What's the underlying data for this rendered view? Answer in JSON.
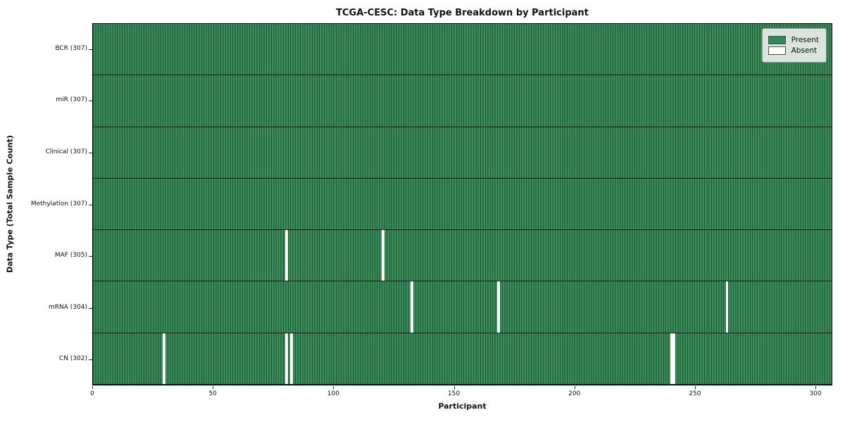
{
  "chart_data": {
    "type": "heatmap",
    "title": "TCGA-CESC: Data Type Breakdown by Participant",
    "xlabel": "Participant",
    "ylabel": "Data Type (Total Sample Count)",
    "x_ticks": [
      0,
      50,
      100,
      150,
      200,
      250,
      300
    ],
    "x_range": [
      0,
      307
    ],
    "n_participants": 307,
    "grid": false,
    "legend_position": "upper right",
    "legend": [
      {
        "label": "Present",
        "color": "#2e8b57"
      },
      {
        "label": "Absent",
        "color": "#ffffff"
      }
    ],
    "rows": [
      {
        "label": "BCR (307)",
        "data_type": "BCR",
        "present_count": 307,
        "absent_participants": []
      },
      {
        "label": "miR (307)",
        "data_type": "miR",
        "present_count": 307,
        "absent_participants": []
      },
      {
        "label": "Clinical (307)",
        "data_type": "Clinical",
        "present_count": 307,
        "absent_participants": []
      },
      {
        "label": "Methylation (307)",
        "data_type": "Methylation",
        "present_count": 307,
        "absent_participants": []
      },
      {
        "label": "MAF (305)",
        "data_type": "MAF",
        "present_count": 305,
        "absent_participants": [
          80,
          120
        ]
      },
      {
        "label": "mRNA (304)",
        "data_type": "mRNA",
        "present_count": 304,
        "absent_participants": [
          132,
          168,
          263
        ]
      },
      {
        "label": "CN (302)",
        "data_type": "CN",
        "present_count": 302,
        "absent_participants": [
          29,
          80,
          82,
          240,
          241
        ]
      }
    ],
    "colors": {
      "present_fill": "#3a8e5c",
      "cell_edge": "#20532f",
      "row_separator": "#1a1a1a",
      "absent_fill": "#ffffff",
      "plot_border": "#000000",
      "background": "#ffffff"
    }
  }
}
